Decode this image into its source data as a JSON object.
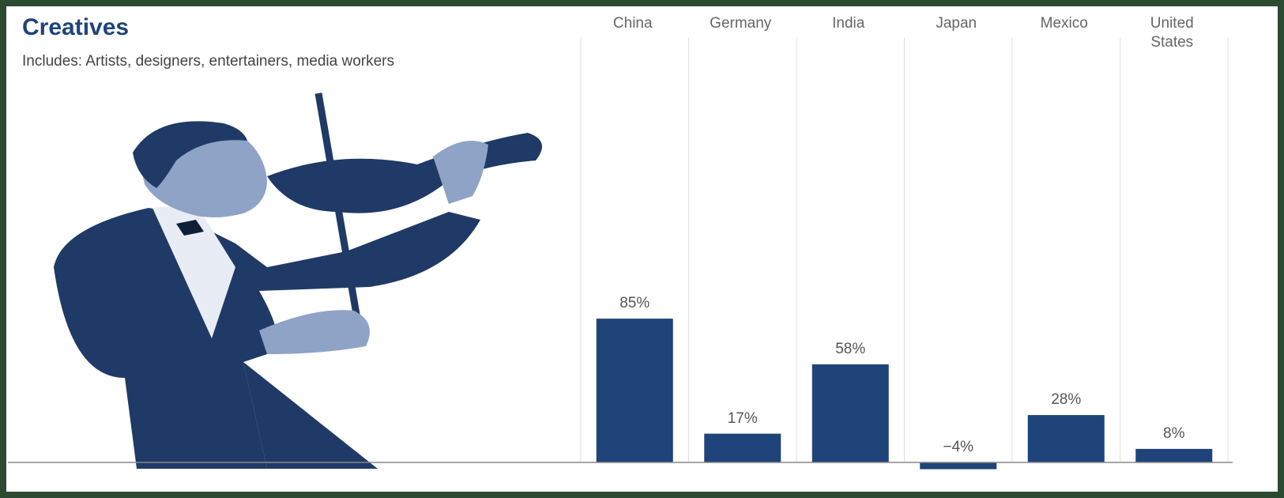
{
  "chart_data": {
    "type": "bar",
    "title": "Creatives",
    "subtitle": "Includes: Artists, designers, entertainers, media workers",
    "categories": [
      "China",
      "Germany",
      "India",
      "Japan",
      "Mexico",
      "United States"
    ],
    "values": [
      85,
      17,
      58,
      -4,
      28,
      8
    ],
    "value_labels": [
      "85%",
      "17%",
      "58%",
      "−4%",
      "28%",
      "8%"
    ],
    "color": "#1f4479"
  }
}
